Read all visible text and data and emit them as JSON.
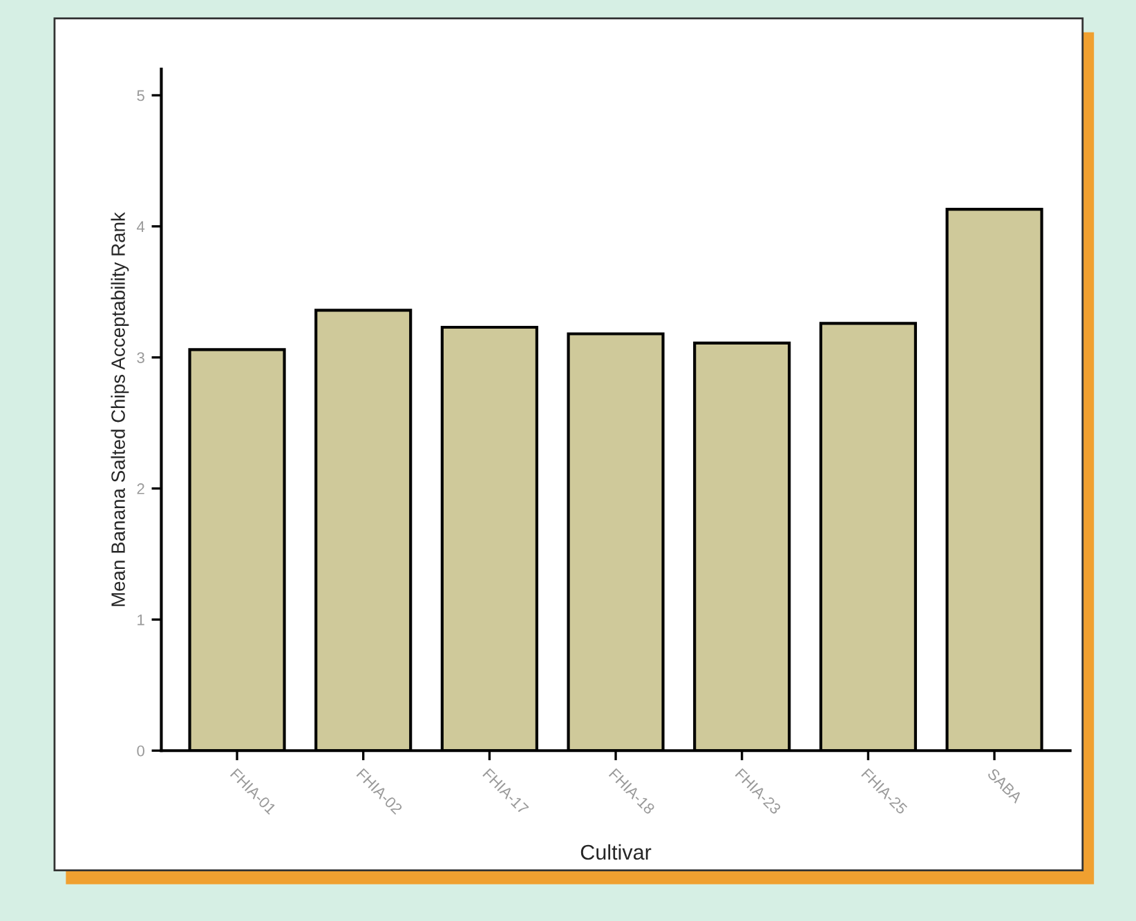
{
  "chart_data": {
    "type": "bar",
    "xlabel": "Cultivar",
    "ylabel": "Mean Banana Salted Chips Acceptability Rank",
    "categories": [
      "FHIA-01",
      "FHIA-02",
      "FHIA-17",
      "FHIA-18",
      "FHIA-23",
      "FHIA-25",
      "SABA"
    ],
    "values": [
      3.06,
      3.36,
      3.23,
      3.18,
      3.11,
      3.26,
      4.13
    ],
    "color": "#cfc99a",
    "ylim": [
      0,
      5.2
    ],
    "yticks": [
      0,
      1,
      2,
      3,
      4,
      5
    ],
    "grid": false,
    "legend": false
  }
}
